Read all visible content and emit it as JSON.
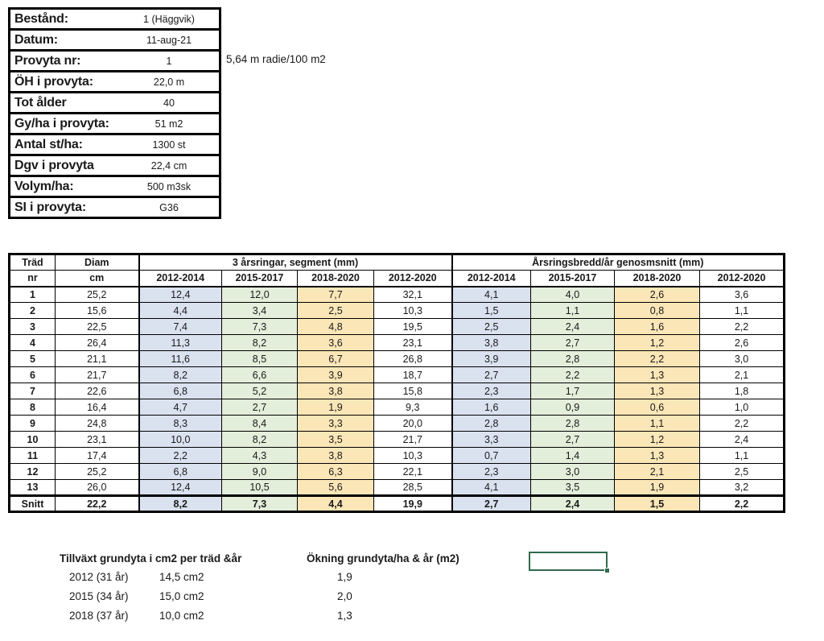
{
  "colors": {
    "band_blue": "#DAE2F0",
    "band_green": "#E3EEDB",
    "band_gold": "#FBE6B7",
    "selection_green": "#2F6B4A",
    "grid_black": "#000000"
  },
  "info_table": {
    "rows": [
      {
        "label": "Bestånd:",
        "value": "1 (Häggvik)"
      },
      {
        "label": "Datum:",
        "value": "11-aug-21"
      },
      {
        "label": "Provyta nr:",
        "value": "1"
      },
      {
        "label": "ÖH i provyta:",
        "value": "22,0 m"
      },
      {
        "label": "Tot ålder",
        "value": "40"
      },
      {
        "label": "Gy/ha i provyta:",
        "value": "51 m2"
      },
      {
        "label": "Antal st/ha:",
        "value": "1300 st"
      },
      {
        "label": "Dgv i provyta",
        "value": "22,4 cm"
      },
      {
        "label": "Volym/ha:",
        "value": "500 m3sk"
      },
      {
        "label": "SI i provyta:",
        "value": "G36"
      }
    ],
    "annotation": "5,64 m radie/100 m2"
  },
  "rings_table": {
    "col_tree_line1": "Träd",
    "col_tree_line2": "nr",
    "col_diam_line1": "Diam",
    "col_diam_line2": "cm",
    "group1_header": "3 årsringar, segment (mm)",
    "group2_header": "Årsringsbredd/år genosmsnitt (mm)",
    "period_headers": [
      "2012-2014",
      "2015-2017",
      "2018-2020",
      "2012-2020"
    ],
    "rows": [
      {
        "nr": "1",
        "diam": "25,2",
        "seg": [
          "12,4",
          "12,0",
          "7,7",
          "32,1"
        ],
        "avg": [
          "4,1",
          "4,0",
          "2,6",
          "3,6"
        ]
      },
      {
        "nr": "2",
        "diam": "15,6",
        "seg": [
          "4,4",
          "3,4",
          "2,5",
          "10,3"
        ],
        "avg": [
          "1,5",
          "1,1",
          "0,8",
          "1,1"
        ]
      },
      {
        "nr": "3",
        "diam": "22,5",
        "seg": [
          "7,4",
          "7,3",
          "4,8",
          "19,5"
        ],
        "avg": [
          "2,5",
          "2,4",
          "1,6",
          "2,2"
        ]
      },
      {
        "nr": "4",
        "diam": "26,4",
        "seg": [
          "11,3",
          "8,2",
          "3,6",
          "23,1"
        ],
        "avg": [
          "3,8",
          "2,7",
          "1,2",
          "2,6"
        ]
      },
      {
        "nr": "5",
        "diam": "21,1",
        "seg": [
          "11,6",
          "8,5",
          "6,7",
          "26,8"
        ],
        "avg": [
          "3,9",
          "2,8",
          "2,2",
          "3,0"
        ]
      },
      {
        "nr": "6",
        "diam": "21,7",
        "seg": [
          "8,2",
          "6,6",
          "3,9",
          "18,7"
        ],
        "avg": [
          "2,7",
          "2,2",
          "1,3",
          "2,1"
        ]
      },
      {
        "nr": "7",
        "diam": "22,6",
        "seg": [
          "6,8",
          "5,2",
          "3,8",
          "15,8"
        ],
        "avg": [
          "2,3",
          "1,7",
          "1,3",
          "1,8"
        ]
      },
      {
        "nr": "8",
        "diam": "16,4",
        "seg": [
          "4,7",
          "2,7",
          "1,9",
          "9,3"
        ],
        "avg": [
          "1,6",
          "0,9",
          "0,6",
          "1,0"
        ]
      },
      {
        "nr": "9",
        "diam": "24,8",
        "seg": [
          "8,3",
          "8,4",
          "3,3",
          "20,0"
        ],
        "avg": [
          "2,8",
          "2,8",
          "1,1",
          "2,2"
        ]
      },
      {
        "nr": "10",
        "diam": "23,1",
        "seg": [
          "10,0",
          "8,2",
          "3,5",
          "21,7"
        ],
        "avg": [
          "3,3",
          "2,7",
          "1,2",
          "2,4"
        ]
      },
      {
        "nr": "11",
        "diam": "17,4",
        "seg": [
          "2,2",
          "4,3",
          "3,8",
          "10,3"
        ],
        "avg": [
          "0,7",
          "1,4",
          "1,3",
          "1,1"
        ]
      },
      {
        "nr": "12",
        "diam": "25,2",
        "seg": [
          "6,8",
          "9,0",
          "6,3",
          "22,1"
        ],
        "avg": [
          "2,3",
          "3,0",
          "2,1",
          "2,5"
        ]
      },
      {
        "nr": "13",
        "diam": "26,0",
        "seg": [
          "12,4",
          "10,5",
          "5,6",
          "28,5"
        ],
        "avg": [
          "4,1",
          "3,5",
          "1,9",
          "3,2"
        ]
      }
    ],
    "summary": {
      "nr": "Snitt",
      "diam": "22,2",
      "seg": [
        "8,2",
        "7,3",
        "4,4",
        "19,9"
      ],
      "avg": [
        "2,7",
        "2,4",
        "1,5",
        "2,2"
      ]
    }
  },
  "growth_section": {
    "heading1": "Tillväxt grundyta i cm2 per träd &år",
    "heading2": "Ökning grundyta/ha & år (m2)",
    "rows": [
      {
        "year": "2012 (31 år)",
        "value": "14,5 cm2",
        "increase": "1,9"
      },
      {
        "year": "2015 (34 år)",
        "value": "15,0 cm2",
        "increase": "2,0"
      },
      {
        "year": "2018 (37 år)",
        "value": "10,0 cm2",
        "increase": "1,3"
      }
    ]
  }
}
